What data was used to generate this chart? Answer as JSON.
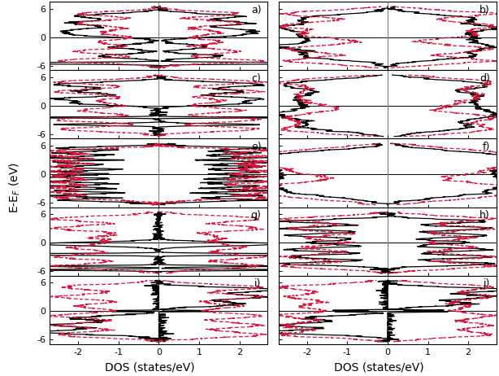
{
  "nrows": 5,
  "ncols": 2,
  "panel_labels": [
    "a)",
    "b)",
    "c)",
    "d)",
    "e)",
    "f)",
    "g)",
    "h)",
    "i)",
    "j)"
  ],
  "xlim": [
    -2.7,
    2.7
  ],
  "ylim": [
    -7.0,
    7.5
  ],
  "yticks": [
    -6,
    0,
    6
  ],
  "xticks": [
    -2,
    -1,
    0,
    1,
    2
  ],
  "xlabel": "DOS (states/eV)",
  "ylabel": "E-E$_F$ (eV)",
  "black_lw": 0.9,
  "red_lw": 0.9,
  "figsize": [
    6.14,
    4.62
  ],
  "dpi": 100
}
